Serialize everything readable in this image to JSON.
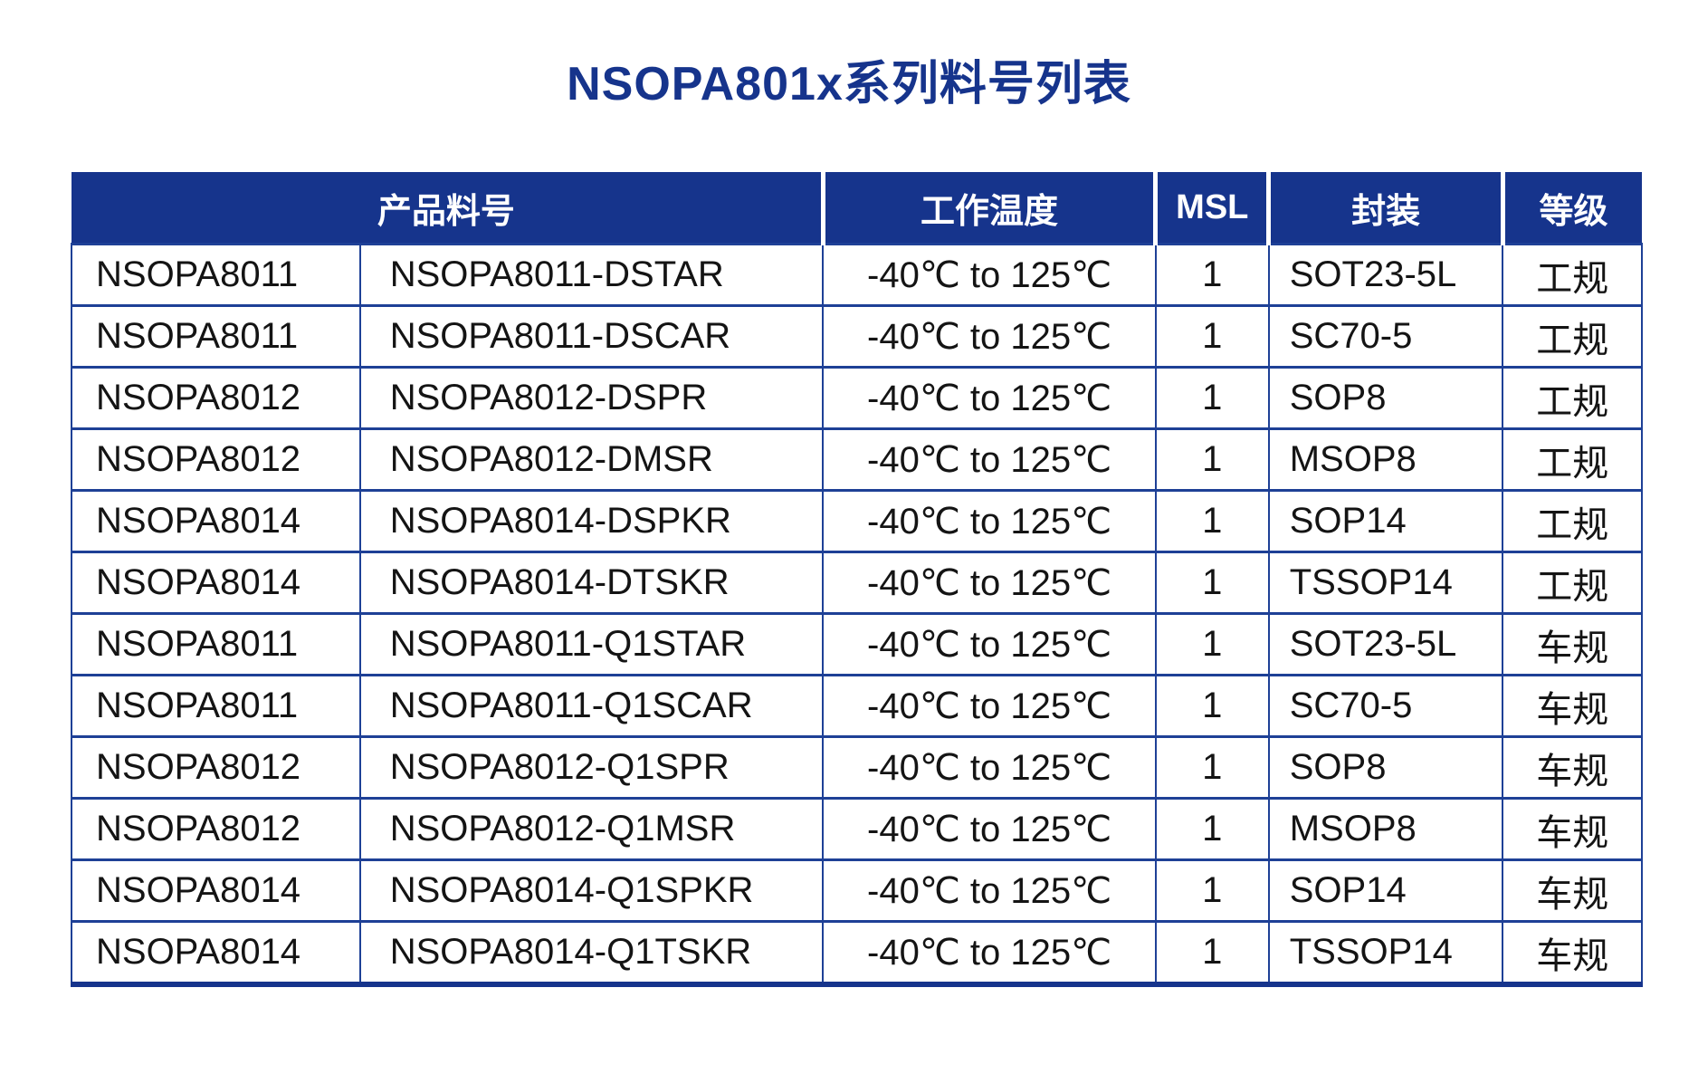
{
  "page": {
    "title": "NSOPA801x系列料号列表"
  },
  "colors": {
    "navy": "#16348C",
    "border_blue": "#1E4096",
    "header_text": "#FFFFFF",
    "body_text": "#141414",
    "page_background": "#FFFFFF"
  },
  "table": {
    "headers": [
      {
        "label": "产品料号",
        "name": "product-part-number",
        "colspan": 2
      },
      {
        "label": "工作温度",
        "name": "operating-temperature",
        "colspan": 1
      },
      {
        "label": "MSL",
        "name": "msl",
        "colspan": 1
      },
      {
        "label": "封装",
        "name": "package",
        "colspan": 1
      },
      {
        "label": "等级",
        "name": "grade",
        "colspan": 1
      }
    ],
    "cell_names": [
      "cell-product-family",
      "cell-order-part-number",
      "cell-operating-temperature",
      "cell-msl",
      "cell-package",
      "cell-grade"
    ],
    "rows": [
      [
        "NSOPA8011",
        "NSOPA8011-DSTAR",
        "-40℃ to 125℃",
        "1",
        "SOT23-5L",
        "工规"
      ],
      [
        "NSOPA8011",
        "NSOPA8011-DSCAR",
        "-40℃ to 125℃",
        "1",
        "SC70-5",
        "工规"
      ],
      [
        "NSOPA8012",
        "NSOPA8012-DSPR",
        "-40℃ to 125℃",
        "1",
        "SOP8",
        "工规"
      ],
      [
        "NSOPA8012",
        "NSOPA8012-DMSR",
        "-40℃ to 125℃",
        "1",
        "MSOP8",
        "工规"
      ],
      [
        "NSOPA8014",
        "NSOPA8014-DSPKR",
        "-40℃ to 125℃",
        "1",
        "SOP14",
        "工规"
      ],
      [
        "NSOPA8014",
        "NSOPA8014-DTSKR",
        "-40℃ to 125℃",
        "1",
        "TSSOP14",
        "工规"
      ],
      [
        "NSOPA8011",
        "NSOPA8011-Q1STAR",
        "-40℃ to 125℃",
        "1",
        "SOT23-5L",
        "车规"
      ],
      [
        "NSOPA8011",
        "NSOPA8011-Q1SCAR",
        "-40℃ to 125℃",
        "1",
        "SC70-5",
        "车规"
      ],
      [
        "NSOPA8012",
        "NSOPA8012-Q1SPR",
        "-40℃ to 125℃",
        "1",
        "SOP8",
        "车规"
      ],
      [
        "NSOPA8012",
        "NSOPA8012-Q1MSR",
        "-40℃ to 125℃",
        "1",
        "MSOP8",
        "车规"
      ],
      [
        "NSOPA8014",
        "NSOPA8014-Q1SPKR",
        "-40℃ to 125℃",
        "1",
        "SOP14",
        "车规"
      ],
      [
        "NSOPA8014",
        "NSOPA8014-Q1TSKR",
        "-40℃ to 125℃",
        "1",
        "TSSOP14",
        "车规"
      ]
    ]
  }
}
